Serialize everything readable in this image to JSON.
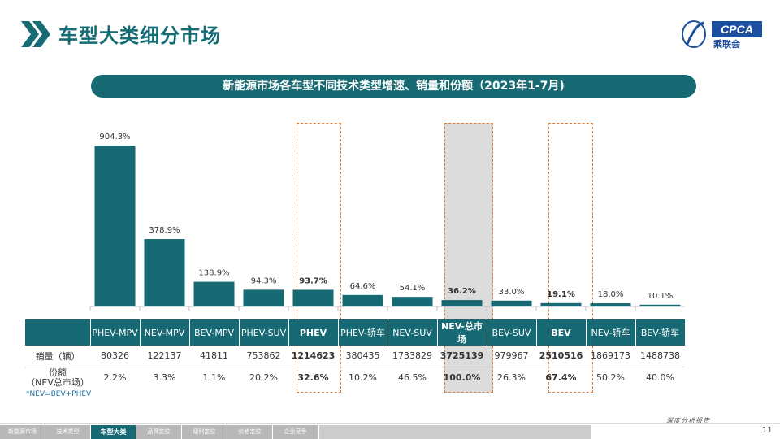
{
  "header": {
    "title": "车型大类细分市场",
    "logo_text": "CPCA",
    "logo_sub": "乘联会"
  },
  "banner": "新能源市场各车型不同技术类型增速、销量和份额（2023年1-7月)",
  "colors": {
    "bar": "#176a73",
    "highlight_border": "#e07b39",
    "highlight_fill": "#dcdcdc"
  },
  "chart_data": {
    "type": "bar",
    "categories": [
      "PHEV-MPV",
      "NEV-MPV",
      "BEV-MPV",
      "PHEV-SUV",
      "PHEV",
      "PHEV-轿车",
      "NEV-SUV",
      "NEV-总市场",
      "BEV-SUV",
      "BEV",
      "NEV-轿车",
      "BEV-轿车"
    ],
    "values": [
      904.3,
      378.9,
      138.9,
      94.3,
      93.7,
      64.6,
      54.1,
      36.2,
      33.0,
      19.1,
      18.0,
      10.1
    ],
    "value_labels": [
      "904.3%",
      "378.9%",
      "138.9%",
      "94.3%",
      "93.7%",
      "64.6%",
      "54.1%",
      "36.2%",
      "33.0%",
      "19.1%",
      "18.0%",
      "10.1%"
    ],
    "bold_labels": [
      4,
      7,
      9
    ],
    "ylim": [
      0,
      1000
    ],
    "grid": false,
    "legend": "none"
  },
  "table": {
    "headers": [
      "",
      "PHEV-MPV",
      "NEV-MPV",
      "BEV-MPV",
      "PHEV-SUV",
      "PHEV",
      "PHEV-轿车",
      "NEV-SUV",
      "NEV-总市场",
      "BEV-SUV",
      "BEV",
      "NEV-轿车",
      "BEV-轿车"
    ],
    "sales_label": "销量（辆）",
    "sales": [
      "80326",
      "122137",
      "41811",
      "753862",
      "1214623",
      "380435",
      "1733829",
      "3725139",
      "979967",
      "2510516",
      "1869173",
      "1488738"
    ],
    "share_label_1": "份额",
    "share_label_2": "（NEV总市场）",
    "share": [
      "2.2%",
      "3.3%",
      "1.1%",
      "20.2%",
      "32.6%",
      "10.2%",
      "46.5%",
      "100.0%",
      "26.3%",
      "67.4%",
      "50.2%",
      "40.0%"
    ]
  },
  "note": "*NEV=BEV+PHEV",
  "footer": {
    "nav": [
      "新能源市场",
      "技术类型",
      "车型大类",
      "品牌定位",
      "级别定位",
      "价格定位",
      "企业竞争"
    ],
    "active_index": 2,
    "report": "深度分析报告",
    "page": "11"
  }
}
